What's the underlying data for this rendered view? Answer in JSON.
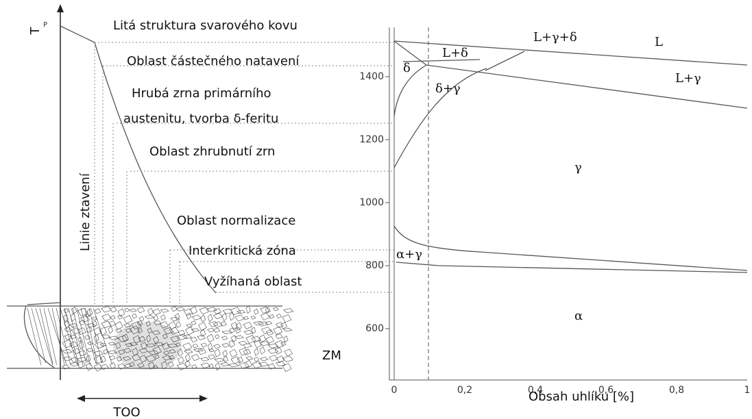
{
  "left": {
    "axis_label": "T",
    "axis_label_sub": "P",
    "fusion_line": "Linie ztavení",
    "zones": [
      "Litá struktura svarového kovu",
      "Oblast částečného natavení",
      "Hrubá zrna primárního",
      "austenitu, tvorba δ-feritu",
      "Oblast zhrubnutí zrn",
      "Oblast normalizace",
      "Interkritická zóna",
      "Vyžíhaná oblast"
    ],
    "base_metal": "ZM",
    "haz": "TOO"
  },
  "right": {
    "yticks": [
      "600",
      "800",
      "1000",
      "1200",
      "1400"
    ],
    "xticks": [
      "0",
      "0,2",
      "0,4",
      "0,6",
      "0,8",
      "1"
    ],
    "x_label": "Obsah uhlíku [%]",
    "phases": [
      "L+δ",
      "L+γ+δ",
      "L",
      "δ",
      "δ+γ",
      "L+γ",
      "γ",
      "α+γ",
      "α"
    ]
  }
}
